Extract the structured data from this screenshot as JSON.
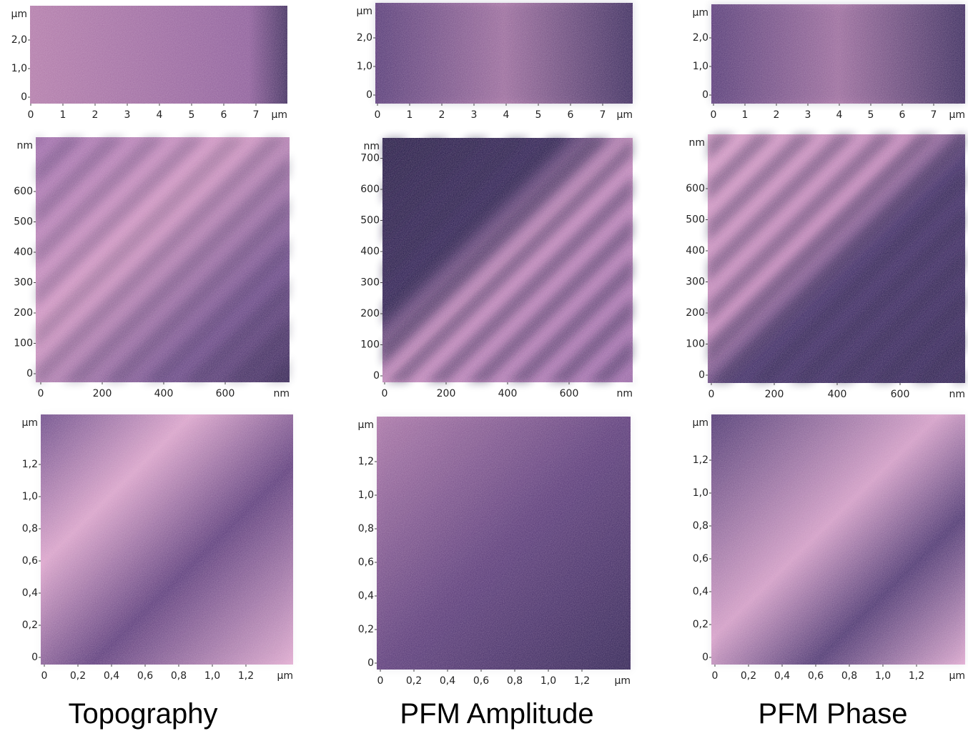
{
  "columns": [
    {
      "label": "Topography",
      "panels": [
        {
          "y_unit": "µm",
          "y_ticks": [
            "0",
            "1,0",
            "2,0"
          ],
          "x_ticks": [
            "0",
            "1",
            "2",
            "3",
            "4",
            "5",
            "6",
            "7"
          ],
          "x_unit": "µm"
        },
        {
          "y_unit": "nm",
          "y_ticks": [
            "0",
            "100",
            "200",
            "300",
            "400",
            "500",
            "600"
          ],
          "x_ticks": [
            "0",
            "200",
            "400",
            "600"
          ],
          "x_unit": "nm"
        },
        {
          "y_unit": "µm",
          "y_ticks": [
            "0",
            "0,2",
            "0,4",
            "0,6",
            "0,8",
            "1,0",
            "1,2"
          ],
          "x_ticks": [
            "0",
            "0,2",
            "0,4",
            "0,6",
            "0,8",
            "1,0",
            "1,2"
          ],
          "x_unit": "µm"
        }
      ]
    },
    {
      "label": "PFM Amplitude",
      "panels": [
        {
          "y_unit": "µm",
          "y_ticks": [
            "0",
            "1,0",
            "2,0"
          ],
          "x_ticks": [
            "0",
            "1",
            "2",
            "3",
            "4",
            "5",
            "6",
            "7"
          ],
          "x_unit": "µm"
        },
        {
          "y_unit": "nm",
          "y_ticks": [
            "0",
            "100",
            "200",
            "300",
            "400",
            "500",
            "600",
            "700"
          ],
          "x_ticks": [
            "0",
            "200",
            "400",
            "600"
          ],
          "x_unit": "nm"
        },
        {
          "y_unit": "µm",
          "y_ticks": [
            "0",
            "0,2",
            "0,4",
            "0,6",
            "0,8",
            "1,0",
            "1,2"
          ],
          "x_ticks": [
            "0",
            "0,2",
            "0,4",
            "0,6",
            "0,8",
            "1,0",
            "1,2"
          ],
          "x_unit": "µm"
        }
      ]
    },
    {
      "label": "PFM Phase",
      "panels": [
        {
          "y_unit": "µm",
          "y_ticks": [
            "0",
            "1,0",
            "2,0"
          ],
          "x_ticks": [
            "0",
            "1",
            "2",
            "3",
            "4",
            "5",
            "6",
            "7"
          ],
          "x_unit": "µm"
        },
        {
          "y_unit": "nm",
          "y_ticks": [
            "0",
            "100",
            "200",
            "300",
            "400",
            "500",
            "600"
          ],
          "x_ticks": [
            "0",
            "200",
            "400",
            "600"
          ],
          "x_unit": "nm"
        },
        {
          "y_unit": "µm",
          "y_ticks": [
            "0",
            "0,2",
            "0,4",
            "0,6",
            "0,8",
            "1,0",
            "1,2"
          ],
          "x_ticks": [
            "0",
            "0,2",
            "0,4",
            "0,6",
            "0,8",
            "1,0",
            "1,2"
          ],
          "x_unit": "µm"
        }
      ]
    }
  ]
}
